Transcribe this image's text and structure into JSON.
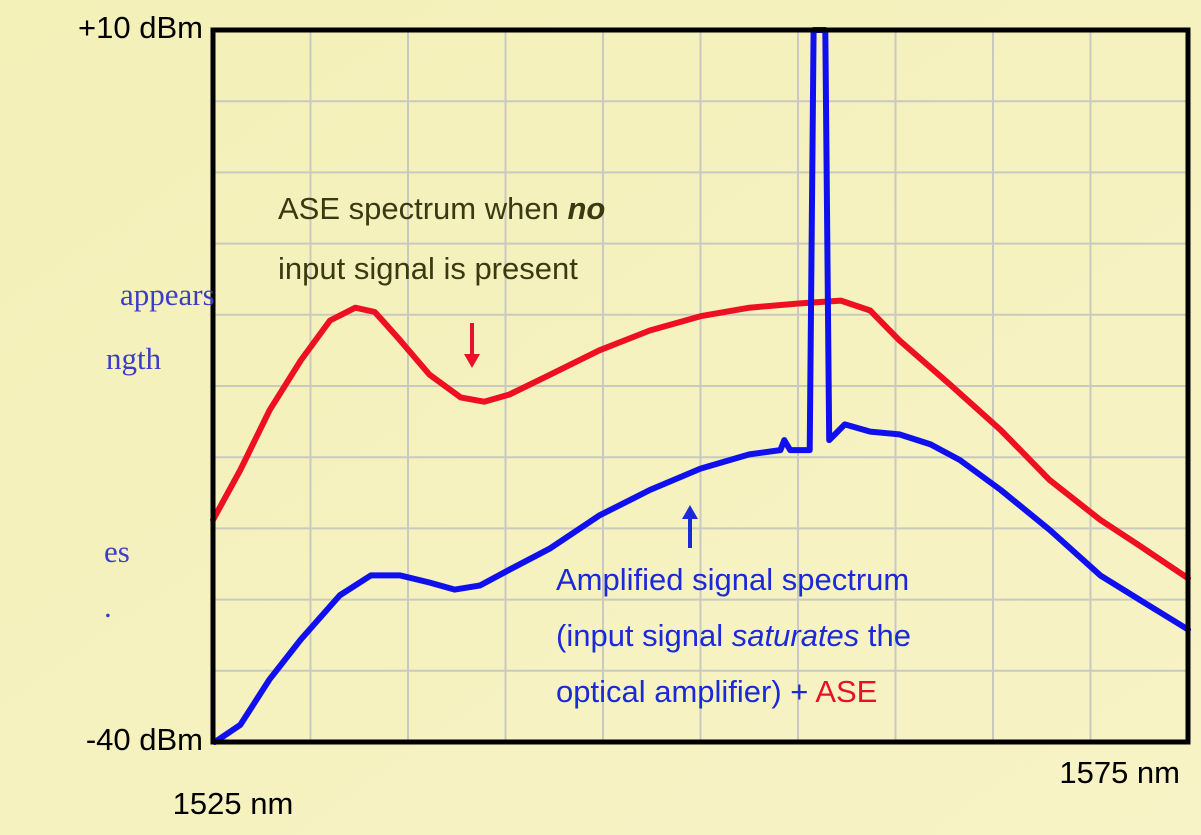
{
  "chart_data": {
    "type": "line",
    "side_text": [
      "appears",
      "ngth",
      "es",
      "."
    ],
    "xlim": [
      1525,
      1575
    ],
    "ylim": [
      -40,
      10
    ],
    "xticks": [
      {
        "value": 1525,
        "label": "1525 nm"
      },
      {
        "value": 1575,
        "label": "1575 nm"
      }
    ],
    "yticks": [
      {
        "value": 10,
        "label": "+10 dBm"
      },
      {
        "value": -40,
        "label": "-40 dBm"
      }
    ],
    "xgrid": [
      1530,
      1535,
      1540,
      1545,
      1550,
      1555,
      1560,
      1565,
      1570
    ],
    "ygrid": [
      -35,
      -30,
      -25,
      -20,
      -15,
      -10,
      -5,
      0,
      5
    ],
    "grid": true,
    "annotations": [
      {
        "lines": [
          [
            "ASE spectrum when ",
            "no"
          ],
          [
            "input signal is present"
          ]
        ],
        "color": "#3a3a12"
      },
      {
        "lines": [
          [
            "Amplified signal spectrum"
          ],
          [
            "(input signal ",
            "saturates",
            " the"
          ],
          [
            "optical amplifier) + ",
            "ASE"
          ]
        ],
        "color": "#1a2ad8",
        "accent": "#e8102a"
      }
    ],
    "series": [
      {
        "color": "#ee1020",
        "x": [
          1525,
          1526.4,
          1527.9,
          1529.5,
          1531.0,
          1532.3,
          1533.3,
          1534.6,
          1536.1,
          1537.7,
          1538.9,
          1540.2,
          1542.3,
          1544.8,
          1547.4,
          1550.0,
          1552.5,
          1555.1,
          1557.2,
          1558.7,
          1560.2,
          1562.8,
          1565.4,
          1567.9,
          1570.5,
          1572.5,
          1575
        ],
        "values": [
          -24.4,
          -20.9,
          -16.7,
          -13.2,
          -10.4,
          -9.5,
          -9.8,
          -11.8,
          -14.2,
          -15.8,
          -16.1,
          -15.6,
          -14.2,
          -12.5,
          -11.1,
          -10.1,
          -9.5,
          -9.2,
          -9.0,
          -9.7,
          -11.8,
          -14.9,
          -18.1,
          -21.6,
          -24.4,
          -26.2,
          -28.5
        ]
      },
      {
        "color": "#1010ee",
        "x": [
          1525.1,
          1526.4,
          1527.9,
          1529.5,
          1531.5,
          1533.1,
          1534.6,
          1536.1,
          1537.4,
          1538.7,
          1540.2,
          1542.3,
          1544.8,
          1547.4,
          1550.0,
          1552.5,
          1554.1,
          1554.3,
          1554.6,
          1555.6,
          1555.8,
          1556.4,
          1556.6,
          1557.4,
          1558.7,
          1560.2,
          1561.8,
          1563.3,
          1565.4,
          1567.9,
          1570.5,
          1572.5,
          1575
        ],
        "values": [
          -40,
          -38.8,
          -35.6,
          -32.8,
          -29.7,
          -28.3,
          -28.3,
          -28.8,
          -29.3,
          -29.0,
          -27.9,
          -26.4,
          -24.1,
          -22.3,
          -20.8,
          -19.8,
          -19.5,
          -18.8,
          -19.5,
          -19.5,
          10,
          10,
          -18.8,
          -17.7,
          -18.2,
          -18.4,
          -19.1,
          -20.2,
          -22.3,
          -25.1,
          -28.3,
          -30.0,
          -32.1
        ]
      }
    ]
  }
}
